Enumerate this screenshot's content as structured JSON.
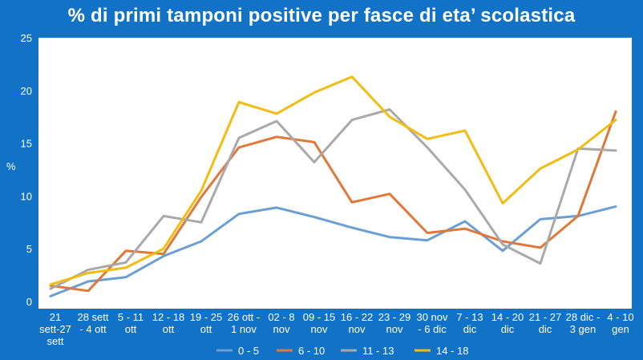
{
  "chart_data": {
    "type": "line",
    "title": "% di primi tamponi positive per fasce di eta’ scolastica",
    "ylabel": "%",
    "xlabel": "",
    "ylim": [
      0,
      25
    ],
    "yticks": [
      0,
      5,
      10,
      15,
      20,
      25
    ],
    "categories": [
      [
        "21",
        "sett-27",
        "sett"
      ],
      [
        "28 sett",
        "- 4 ott"
      ],
      [
        "5 - 11",
        "ott"
      ],
      [
        "12 - 18",
        "ott"
      ],
      [
        "19 - 25",
        "ott"
      ],
      [
        "26 ott -",
        "1 nov"
      ],
      [
        "02 - 8",
        "nov"
      ],
      [
        "09 - 15",
        "nov"
      ],
      [
        "16 - 22",
        "nov"
      ],
      [
        "23 - 29",
        "nov"
      ],
      [
        "30 nov",
        "- 6 dic"
      ],
      [
        "7 - 13",
        "dic"
      ],
      [
        "14 - 20",
        "dic"
      ],
      [
        "21 - 27",
        "dic"
      ],
      [
        "28 dic -",
        "3 gen"
      ],
      [
        "4 - 10",
        "gen"
      ]
    ],
    "series": [
      {
        "name": "0 - 5",
        "color": "#6a9fd4",
        "values": [
          0.5,
          1.9,
          2.3,
          4.3,
          5.7,
          8.3,
          8.9,
          8.0,
          7.0,
          6.1,
          5.8,
          7.6,
          4.8,
          7.8,
          8.1,
          9.0
        ]
      },
      {
        "name": "6 - 10",
        "color": "#e0783a",
        "values": [
          1.5,
          1.0,
          4.8,
          4.5,
          9.9,
          14.6,
          15.6,
          15.1,
          9.4,
          10.2,
          6.5,
          6.9,
          5.7,
          5.1,
          8.1,
          18.0
        ]
      },
      {
        "name": "11 - 13",
        "color": "#a9a9a9",
        "values": [
          1.2,
          3.0,
          3.7,
          8.1,
          7.5,
          15.5,
          17.1,
          13.2,
          17.2,
          18.2,
          14.6,
          10.6,
          5.4,
          3.6,
          14.5,
          14.3
        ]
      },
      {
        "name": "14 - 18",
        "color": "#f2bc12",
        "values": [
          1.6,
          2.7,
          3.2,
          5.0,
          10.5,
          18.9,
          17.8,
          19.8,
          21.3,
          17.5,
          15.4,
          16.2,
          9.3,
          12.6,
          14.4,
          17.2
        ]
      }
    ],
    "grid": false,
    "legend": "bottom"
  }
}
